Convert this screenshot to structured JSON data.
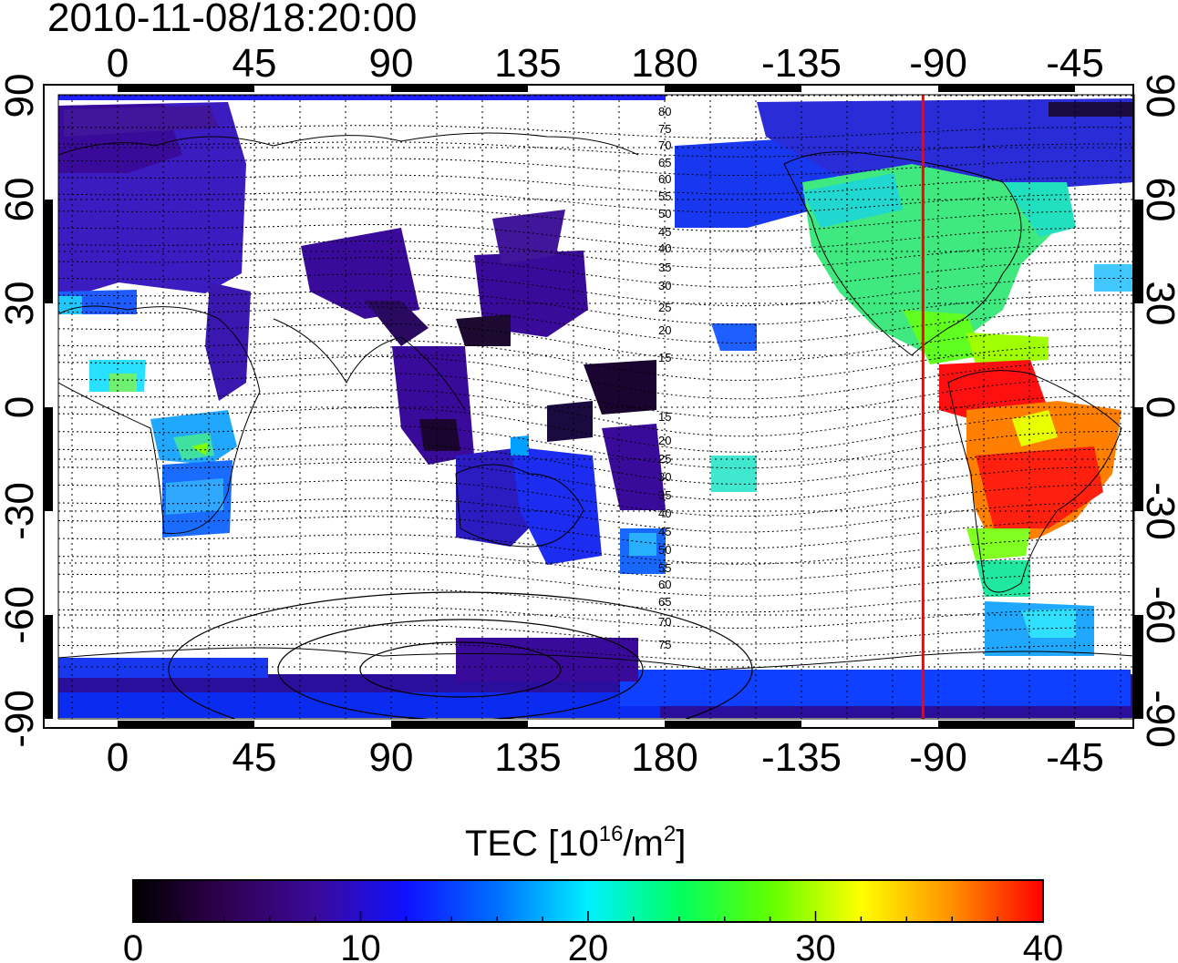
{
  "title": "2010-11-08/18:20:00",
  "map": {
    "top_ticks": [
      "0",
      "45",
      "90",
      "135",
      "180",
      "-135",
      "-90",
      "-45"
    ],
    "bottom_ticks": [
      "0",
      "45",
      "90",
      "135",
      "180",
      "-135",
      "-90",
      "-45"
    ],
    "left_ticks": [
      "90",
      "60",
      "30",
      "0",
      "-30",
      "-60",
      "-90"
    ],
    "right_ticks": [
      "90",
      "60",
      "30",
      "0",
      "-30",
      "-60",
      "-90"
    ],
    "contour_labels": [
      "80",
      "75",
      "70",
      "65",
      "60",
      "55",
      "50",
      "45",
      "40",
      "35",
      "30",
      "25",
      "20",
      "15",
      "15",
      "20",
      "25",
      "30",
      "35",
      "40",
      "45",
      "50",
      "55",
      "60",
      "65",
      "70",
      "75"
    ],
    "marker_longitude": -95,
    "marker_color": "#ff0000"
  },
  "colorbar": {
    "title_prefix": "TEC  [10",
    "title_exp1": "16",
    "title_mid": "/m",
    "title_exp2": "2",
    "title_suffix": "]",
    "min": 0,
    "max": 40,
    "tick_labels": [
      "0",
      "10",
      "20",
      "30",
      "40"
    ],
    "colors": [
      "#000000",
      "#300050",
      "#3a0a9a",
      "#1010ff",
      "#0070ff",
      "#00f0ff",
      "#00ff60",
      "#60ff00",
      "#ffff00",
      "#ff9000",
      "#ff0000"
    ]
  }
}
